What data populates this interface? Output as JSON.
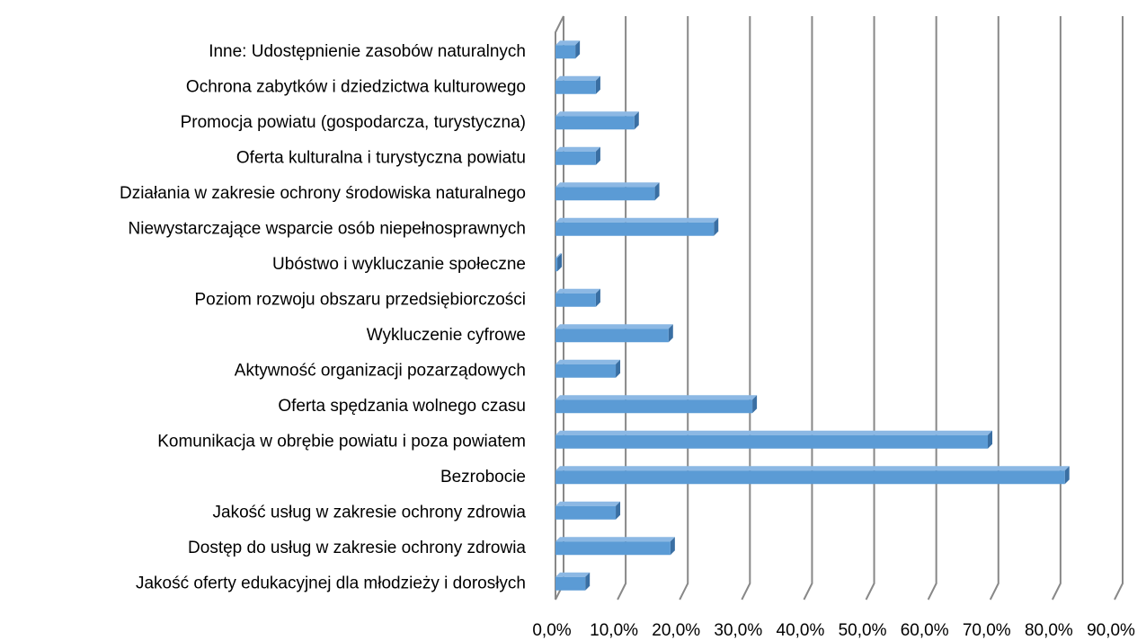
{
  "chart_data": {
    "type": "bar3d_horizontal",
    "categories": [
      "Inne: Udostępnienie zasobów naturalnych",
      "Ochrona zabytków i dziedzictwa kulturowego",
      "Promocja powiatu (gospodarcza, turystyczna)",
      "Oferta kulturalna i turystyczna powiatu",
      "Działania w zakresie ochrony środowiska naturalnego",
      "Niewystarczające wsparcie osób niepełnosprawnych",
      "Ubóstwo i wykluczanie społeczne",
      "Poziom rozwoju obszaru przedsiębiorczości",
      "Wykluczenie cyfrowe",
      "Aktywność organizacji pozarządowych ",
      "Oferta spędzania wolnego czasu",
      "Komunikacja w obrębie powiatu i poza powiatem",
      "Bezrobocie",
      "Jakość usług w zakresie ochrony zdrowia",
      "Dostęp do usług  w zakresie ochrony zdrowia",
      "Jakość oferty edukacyjnej dla młodzieży i dorosłych"
    ],
    "values": [
      3.2,
      6.5,
      12.7,
      6.5,
      16,
      25.5,
      0.3,
      6.5,
      18.2,
      9.7,
      31.7,
      69.6,
      82,
      9.7,
      18.5,
      4.8
    ],
    "color": "#5b9bd5",
    "xlim": [
      0,
      90
    ],
    "xticks": [
      {
        "value": 0,
        "label": "0,0%"
      },
      {
        "value": 10,
        "label": "10,0%"
      },
      {
        "value": 20,
        "label": "20,0%"
      },
      {
        "value": 30,
        "label": "30,0%"
      },
      {
        "value": 40,
        "label": "40,0%"
      },
      {
        "value": 50,
        "label": "50,0%"
      },
      {
        "value": 60,
        "label": "60,0%"
      },
      {
        "value": 70,
        "label": "70,0%"
      },
      {
        "value": 80,
        "label": "80,0%"
      },
      {
        "value": 90,
        "label": "90,0%"
      }
    ],
    "grid": true
  }
}
